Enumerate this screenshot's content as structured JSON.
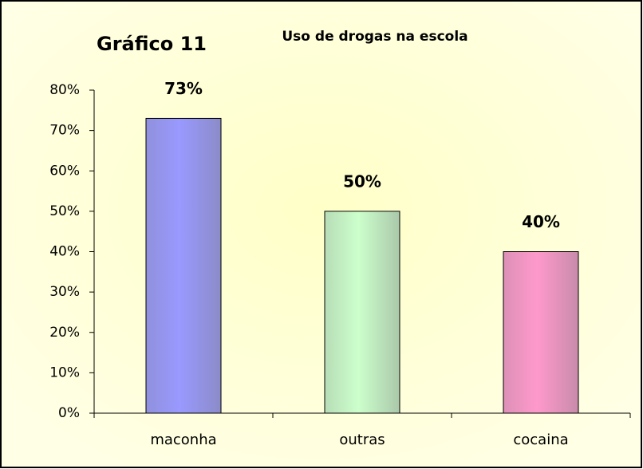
{
  "chart_data": {
    "type": "bar",
    "title": "Gráfico 11",
    "subtitle": "Uso de drogas na escola",
    "categories": [
      "maconha",
      "outras",
      "cocaina"
    ],
    "values": [
      73,
      50,
      40
    ],
    "value_labels": [
      "73%",
      "50%",
      "40%"
    ],
    "colors": [
      "#9999ff",
      "#ccffcc",
      "#ff99cc"
    ],
    "ylim": [
      0,
      80
    ],
    "yticks": [
      {
        "value": 0,
        "label": "0%"
      },
      {
        "value": 10,
        "label": "10%"
      },
      {
        "value": 20,
        "label": "20%"
      },
      {
        "value": 30,
        "label": "30%"
      },
      {
        "value": 40,
        "label": "40%"
      },
      {
        "value": 50,
        "label": "50%"
      },
      {
        "value": 60,
        "label": "60%"
      },
      {
        "value": 70,
        "label": "70%"
      },
      {
        "value": 80,
        "label": "80%"
      }
    ]
  }
}
